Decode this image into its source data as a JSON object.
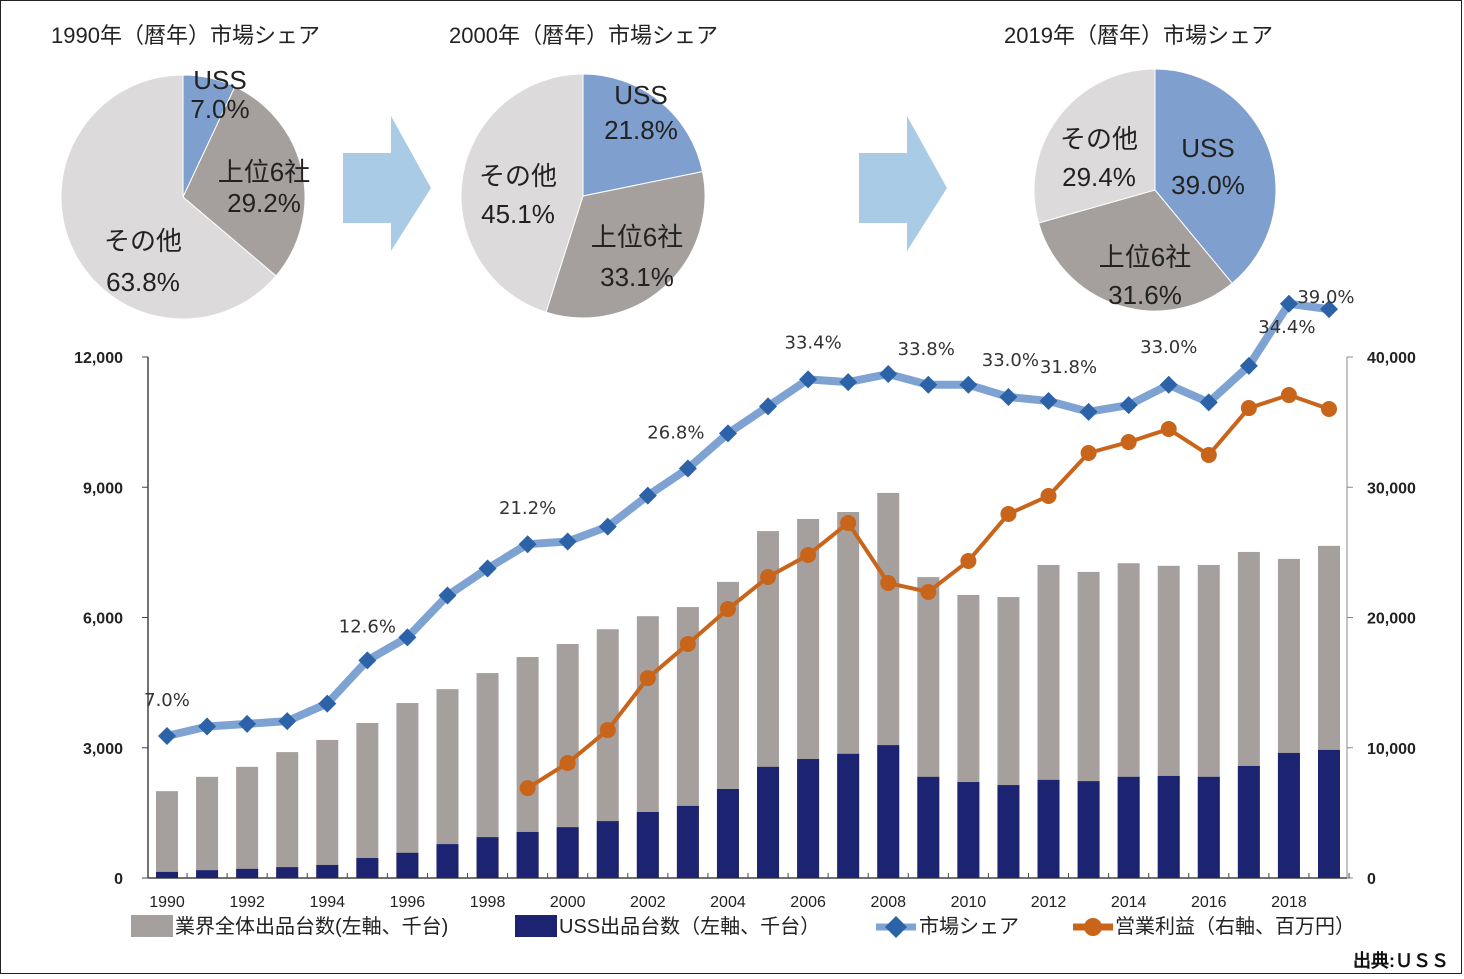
{
  "pies": [
    {
      "title": "1990年（暦年）市場シェア",
      "slices": [
        {
          "name": "USS",
          "label": "USS",
          "value": 7.0,
          "value_label": "7.0%",
          "color": "#7f9fcf"
        },
        {
          "name": "上位6社",
          "label": "上位6社",
          "value": 29.2,
          "value_label": "29.2%",
          "color": "#a5a09d"
        },
        {
          "name": "その他",
          "label": "その他",
          "value": 63.8,
          "value_label": "63.8%",
          "color": "#dcdada"
        }
      ]
    },
    {
      "title": "2000年（暦年）市場シェア",
      "slices": [
        {
          "name": "USS",
          "label": "USS",
          "value": 21.8,
          "value_label": "21.8%",
          "color": "#7f9fcf"
        },
        {
          "name": "上位6社",
          "label": "上位6社",
          "value": 33.1,
          "value_label": "33.1%",
          "color": "#a5a09d"
        },
        {
          "name": "その他",
          "label": "その他",
          "value": 45.1,
          "value_label": "45.1%",
          "color": "#dcdada"
        }
      ]
    },
    {
      "title": "2019年（暦年）市場シェア",
      "slices": [
        {
          "name": "USS",
          "label": "USS",
          "value": 39.0,
          "value_label": "39.0%",
          "color": "#7f9fcf"
        },
        {
          "name": "上位6社",
          "label": "上位6社",
          "value": 31.6,
          "value_label": "31.6%",
          "color": "#a5a09d"
        },
        {
          "name": "その他",
          "label": "その他",
          "value": 29.4,
          "value_label": "29.4%",
          "color": "#dcdada"
        }
      ]
    }
  ],
  "arrow_color": "#a9cbe6",
  "chart_data": [
    {
      "type": "pie",
      "title": "1990年（暦年）市場シェア",
      "categories": [
        "USS",
        "上位6社",
        "その他"
      ],
      "values": [
        7.0,
        29.2,
        63.8
      ]
    },
    {
      "type": "pie",
      "title": "2000年（暦年）市場シェア",
      "categories": [
        "USS",
        "上位6社",
        "その他"
      ],
      "values": [
        21.8,
        33.1,
        45.1
      ]
    },
    {
      "type": "pie",
      "title": "2019年（暦年）市場シェア",
      "categories": [
        "USS",
        "上位6社",
        "その他"
      ],
      "values": [
        39.0,
        31.6,
        29.4
      ]
    },
    {
      "type": "bar",
      "title": "",
      "x": [
        1990,
        1991,
        1992,
        1993,
        1994,
        1995,
        1996,
        1997,
        1998,
        1999,
        2000,
        2001,
        2002,
        2003,
        2004,
        2005,
        2006,
        2007,
        2008,
        2009,
        2010,
        2011,
        2012,
        2013,
        2014,
        2015,
        2016,
        2017,
        2018,
        2019
      ],
      "x_tick_labels": [
        "1990",
        "1992",
        "1994",
        "1996",
        "1998",
        "2000",
        "2002",
        "2004",
        "2006",
        "2008",
        "2010",
        "2012",
        "2014",
        "2016",
        "2018"
      ],
      "left_axis": {
        "range": [
          0,
          12000
        ],
        "ticks": [
          "0",
          "3,000",
          "6,000",
          "9,000",
          "12,000"
        ],
        "tick_values": [
          0,
          3000,
          6000,
          9000,
          12000
        ]
      },
      "right_axis": {
        "range": [
          0,
          40000
        ],
        "ticks": [
          "0",
          "10,000",
          "20,000",
          "30,000",
          "40,000"
        ],
        "tick_values": [
          0,
          10000,
          20000,
          30000,
          40000
        ]
      },
      "grid": false,
      "legend_position": "bottom",
      "series": [
        {
          "name": "業界全体出品台数(左軸、千台)",
          "kind": "bar",
          "axis": "left",
          "color": "#a5a09d",
          "values": [
            2000,
            2330,
            2560,
            2900,
            3180,
            3570,
            4030,
            4350,
            4720,
            5090,
            5390,
            5730,
            6030,
            6240,
            6820,
            7990,
            8270,
            8430,
            8870,
            6930,
            6520,
            6470,
            7210,
            7050,
            7250,
            7190,
            7210,
            7510,
            7350,
            7650
          ]
        },
        {
          "name": "USS出品台数（左軸、千台）",
          "kind": "bar",
          "axis": "left",
          "color": "#1c2370",
          "values": [
            140,
            180,
            210,
            250,
            300,
            460,
            580,
            780,
            940,
            1060,
            1170,
            1310,
            1520,
            1660,
            2050,
            2560,
            2740,
            2860,
            3060,
            2330,
            2210,
            2140,
            2260,
            2230,
            2330,
            2350,
            2330,
            2580,
            2880,
            2950
          ]
        },
        {
          "name": "市場シェア",
          "kind": "line",
          "marker": "diamond",
          "axis": "percent",
          "color": "#2b62a8",
          "line_color": "#7ea3d3",
          "values": [
            7.0,
            7.7,
            7.9,
            8.1,
            9.4,
            12.6,
            14.3,
            17.4,
            19.4,
            21.2,
            21.4,
            22.5,
            24.8,
            26.8,
            29.4,
            31.4,
            33.4,
            33.2,
            33.8,
            33.0,
            33.0,
            32.1,
            31.8,
            31.0,
            31.5,
            33.0,
            31.7,
            34.4,
            39.0,
            38.6
          ],
          "data_labels": [
            {
              "x": 1990,
              "text": "7.0%"
            },
            {
              "x": 1995,
              "text": "12.6%"
            },
            {
              "x": 1999,
              "text": "21.2%"
            },
            {
              "x": 2003,
              "text": "26.8%"
            },
            {
              "x": 2006,
              "text": "33.4%"
            },
            {
              "x": 2008,
              "text": "33.8%"
            },
            {
              "x": 2010,
              "text": "33.0%"
            },
            {
              "x": 2012,
              "text": "31.8%"
            },
            {
              "x": 2015,
              "text": "33.0%"
            },
            {
              "x": 2017,
              "text": "34.4%"
            },
            {
              "x": 2018,
              "text": "39.0%"
            }
          ]
        },
        {
          "name": "営業利益（右軸、百万円）",
          "kind": "line",
          "marker": "circle",
          "axis": "right",
          "color": "#c8651b",
          "x": [
            1999,
            2000,
            2001,
            2002,
            2003,
            2004,
            2005,
            2006,
            2007,
            2008,
            2009,
            2010,
            2011,
            2012,
            2013,
            2014,
            2015,
            2016,
            2017,
            2018,
            2019
          ],
          "values": [
            6900,
            8830,
            11360,
            15350,
            17970,
            20650,
            23110,
            24800,
            27260,
            22650,
            21960,
            24340,
            27950,
            29330,
            32630,
            33470,
            34470,
            32480,
            36080,
            37080,
            36010
          ]
        }
      ]
    }
  ],
  "legend": [
    {
      "label": "業界全体出品台数(左軸、千台)",
      "swatch": "bar",
      "color": "#a5a09d"
    },
    {
      "label": "USS出品台数（左軸、千台）",
      "swatch": "bar",
      "color": "#1c2370"
    },
    {
      "label": "市場シェア",
      "swatch": "line-diamond",
      "color": "#2b62a8",
      "line_color": "#7ea3d3"
    },
    {
      "label": "営業利益（右軸、百万円）",
      "swatch": "line-circle",
      "color": "#c8651b"
    }
  ],
  "source": "出典:ＵＳＳ"
}
